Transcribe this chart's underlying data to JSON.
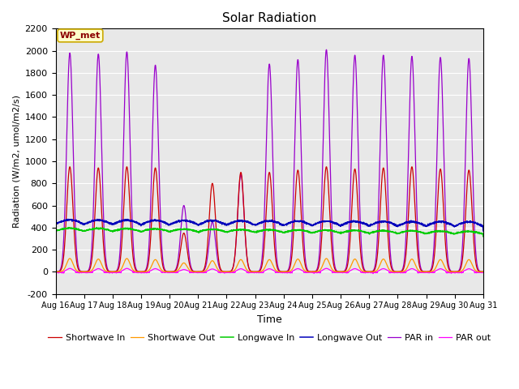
{
  "title": "Solar Radiation",
  "ylabel": "Radiation (W/m2, umol/m2/s)",
  "xlabel": "Time",
  "ylim": [
    -200,
    2200
  ],
  "yticks": [
    -200,
    0,
    200,
    400,
    600,
    800,
    1000,
    1200,
    1400,
    1600,
    1800,
    2000,
    2200
  ],
  "n_days": 15,
  "points_per_day": 144,
  "series_colors": {
    "shortwave_in": "#cc0000",
    "shortwave_out": "#ff9900",
    "longwave_in": "#00cc00",
    "longwave_out": "#0000bb",
    "par_in": "#9900cc",
    "par_out": "#ff00ff"
  },
  "series_labels": [
    "Shortwave In",
    "Shortwave Out",
    "Longwave In",
    "Longwave Out",
    "PAR in",
    "PAR out"
  ],
  "station_label": "WP_met",
  "bg_color": "#e8e8e8",
  "fig_bg_color": "#ffffff",
  "par_peaks": [
    1980,
    1970,
    1990,
    1870,
    600,
    450,
    880,
    1880,
    1920,
    2010,
    1960,
    1960,
    1950,
    1940,
    1930
  ],
  "sw_peaks": [
    950,
    940,
    950,
    940,
    350,
    800,
    900,
    900,
    920,
    950,
    930,
    940,
    950,
    930,
    920
  ],
  "sw_out_peaks": [
    120,
    115,
    120,
    110,
    80,
    100,
    110,
    110,
    115,
    120,
    115,
    115,
    115,
    110,
    110
  ],
  "par_out_peaks": [
    30,
    28,
    30,
    28,
    20,
    25,
    27,
    27,
    28,
    30,
    28,
    28,
    28,
    27,
    27
  ]
}
